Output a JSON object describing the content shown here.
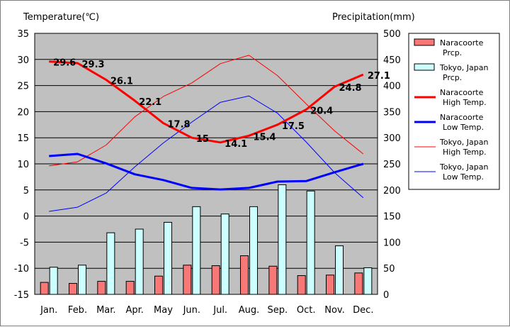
{
  "chart_data": {
    "type": "bar",
    "title": "",
    "left_axis_title": "Temperature(℃)",
    "right_axis_title": "Precipitation(mm)",
    "categories": [
      "Jan.",
      "Feb.",
      "Mar.",
      "Apr.",
      "May",
      "Jun.",
      "Jul.",
      "Aug.",
      "Sep.",
      "Oct.",
      "Nov.",
      "Dec."
    ],
    "left_ylim": [
      -15,
      35
    ],
    "left_ticks": [
      35,
      30,
      25,
      20,
      15,
      10,
      5,
      0,
      -5,
      -10,
      -15
    ],
    "right_ylim": [
      0,
      500
    ],
    "right_ticks": [
      500,
      450,
      400,
      350,
      300,
      250,
      200,
      150,
      100,
      50,
      0
    ],
    "grid": true,
    "legend_position": "right",
    "bars": [
      {
        "name": "Naracoorte Prcp.",
        "legend": [
          "Naracoorte",
          "Prcp."
        ],
        "axis": "right",
        "color": "#f87878",
        "values": [
          23,
          21,
          25,
          25,
          35,
          56,
          55,
          74,
          54,
          36,
          37,
          41
        ]
      },
      {
        "name": "Tokyo, Japan Prcp.",
        "legend": [
          "Tokyo, Japan",
          "Prcp."
        ],
        "axis": "right",
        "color": "#ccffff",
        "values": [
          52,
          56,
          118,
          125,
          138,
          168,
          154,
          168,
          210,
          198,
          93,
          51
        ]
      }
    ],
    "lines": [
      {
        "name": "Naracoorte High Temp.",
        "legend": [
          "Naracoorte",
          "High Temp."
        ],
        "axis": "left",
        "color": "#ff0000",
        "width": 3,
        "values": [
          29.6,
          29.3,
          26.1,
          22.1,
          17.8,
          15.0,
          14.1,
          15.4,
          17.5,
          20.4,
          24.8,
          27.1
        ],
        "labels": [
          "29.6",
          "29.3",
          "26.1",
          "22.1",
          "17.8",
          "15",
          "14.1",
          "15.4",
          "17.5",
          "20.4",
          "24.8",
          "27.1"
        ]
      },
      {
        "name": "Naracoorte Low Temp.",
        "legend": [
          "Naracoorte",
          "Low Temp."
        ],
        "axis": "left",
        "color": "#0000ff",
        "width": 3,
        "values": [
          11.5,
          11.9,
          10.1,
          8.0,
          6.9,
          5.4,
          5.1,
          5.4,
          6.6,
          6.7,
          8.4,
          10.0
        ]
      },
      {
        "name": "Tokyo, Japan High Temp.",
        "legend": [
          "Tokyo, Japan",
          "High Temp."
        ],
        "axis": "left",
        "color": "#ff0000",
        "width": 1,
        "values": [
          9.6,
          10.4,
          13.6,
          19.0,
          22.9,
          25.5,
          29.2,
          30.8,
          26.9,
          21.5,
          16.3,
          11.9
        ]
      },
      {
        "name": "Tokyo, Japan Low Temp.",
        "legend": [
          "Tokyo, Japan",
          "Low Temp."
        ],
        "axis": "left",
        "color": "#0000ff",
        "width": 1,
        "values": [
          0.9,
          1.7,
          4.4,
          9.4,
          14.0,
          18.0,
          21.8,
          23.0,
          19.7,
          14.2,
          8.3,
          3.5
        ]
      }
    ]
  }
}
